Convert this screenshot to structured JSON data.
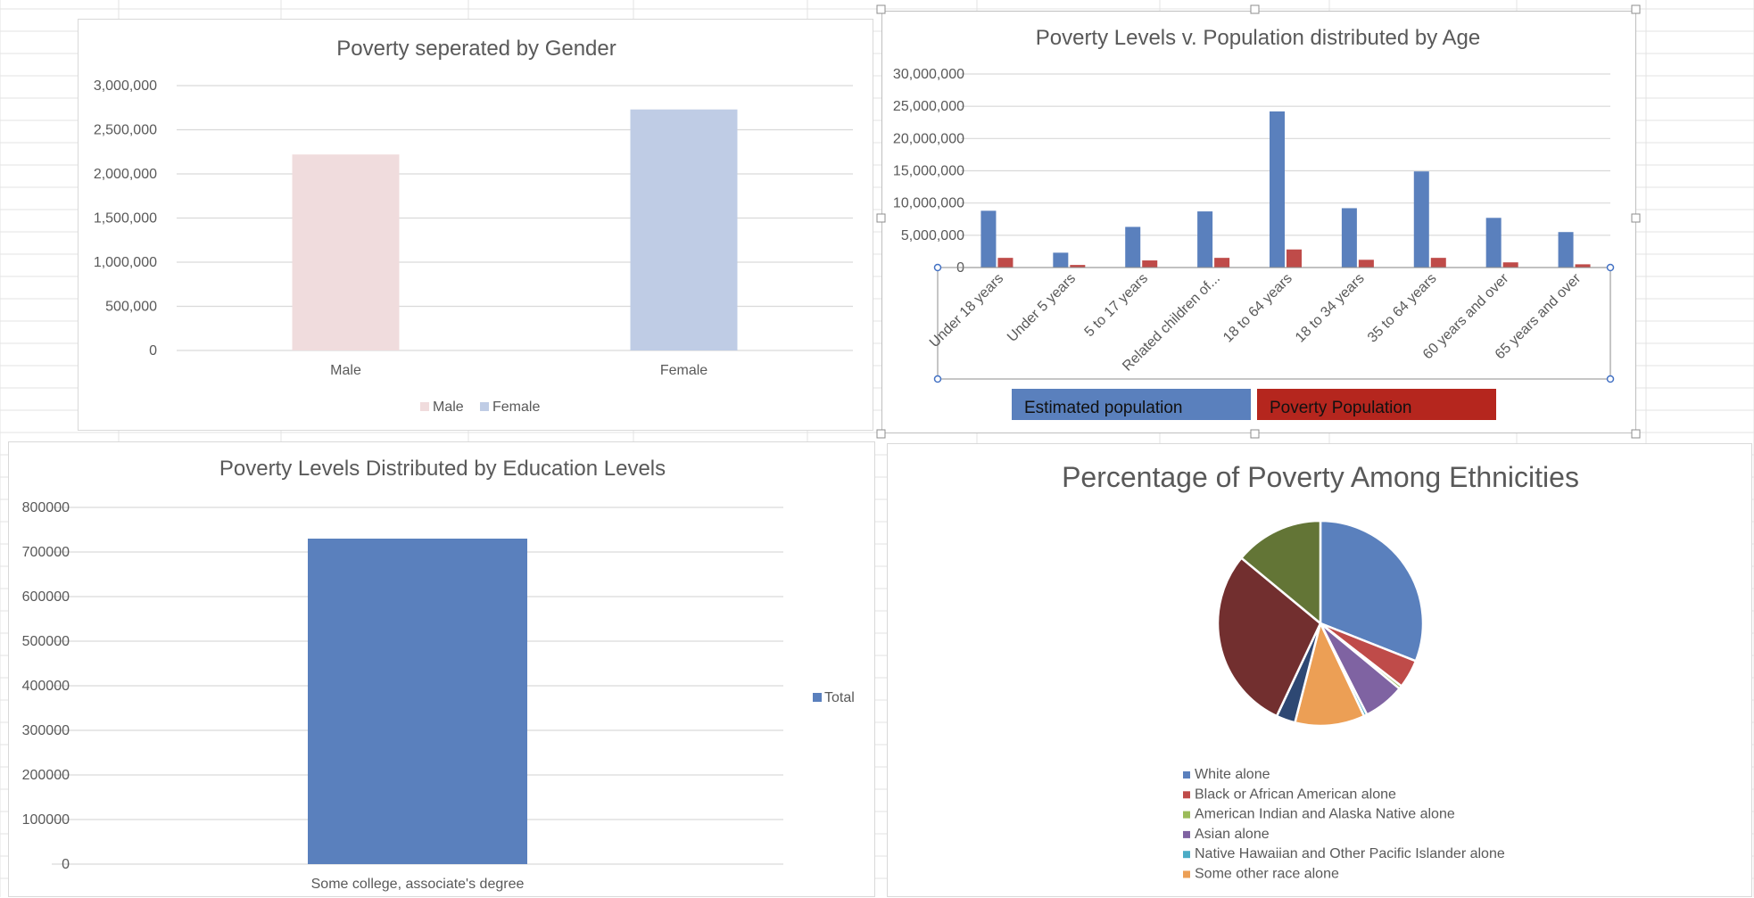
{
  "colors": {
    "male": "#f0dcdd",
    "female": "#bfcce5",
    "estimated": "#5a80bd",
    "poverty": "#bf4b49",
    "poverty_label_bg": "#b5261e",
    "education": "#5a80bd",
    "gridline": "#d9d9d9"
  },
  "chart_data": [
    {
      "id": "gender",
      "type": "bar",
      "title": "Poverty seperated by Gender",
      "categories": [
        "Male",
        "Female"
      ],
      "values": [
        2220000,
        2730000
      ],
      "ylim": [
        0,
        3000000
      ],
      "yticks": [
        "0",
        "500,000",
        "1,000,000",
        "1,500,000",
        "2,000,000",
        "2,500,000",
        "3,000,000"
      ],
      "legend": [
        "Male",
        "Female"
      ],
      "legend_position": "bottom",
      "grid": true
    },
    {
      "id": "age",
      "type": "bar",
      "title": "Poverty Levels v. Population distributed by Age",
      "categories": [
        "Under 18 years",
        "Under 5 years",
        "5 to 17 years",
        "Related children of...",
        "18 to 64 years",
        "18 to 34 years",
        "35 to 64 years",
        "60 years and over",
        "65 years and over"
      ],
      "series": [
        {
          "name": "Estimated population",
          "values": [
            8800000,
            2300000,
            6300000,
            8700000,
            24200000,
            9200000,
            14900000,
            7700000,
            5500000
          ]
        },
        {
          "name": "Poverty Population",
          "values": [
            1500000,
            400000,
            1100000,
            1500000,
            2800000,
            1200000,
            1500000,
            800000,
            500000
          ]
        }
      ],
      "ylim": [
        0,
        30000000
      ],
      "yticks": [
        "0",
        "5,000,000",
        "10,000,000",
        "15,000,000",
        "20,000,000",
        "25,000,000",
        "30,000,000"
      ],
      "legend_position": "bottom",
      "grid": true
    },
    {
      "id": "education",
      "type": "bar",
      "title": "Poverty Levels Distributed by Education Levels",
      "categories": [
        "Some college, associate's degree"
      ],
      "series": [
        {
          "name": "Total",
          "values": [
            730000
          ]
        }
      ],
      "ylim": [
        0,
        800000
      ],
      "yticks": [
        "0",
        "100000",
        "200000",
        "300000",
        "400000",
        "500000",
        "600000",
        "700000",
        "800000"
      ],
      "legend_position": "right",
      "grid": true
    },
    {
      "id": "ethnicity",
      "type": "pie",
      "title": "Percentage of Poverty Among Ethnicities",
      "legend_position": "bottom",
      "slices": [
        {
          "label": "White alone",
          "value": 31,
          "color": "#5a80bd"
        },
        {
          "label": "Black or African American alone",
          "value": 4.5,
          "color": "#bf4b49"
        },
        {
          "label": "American Indian and Alaska Native alone",
          "value": 0.5,
          "color": "#9bbb59"
        },
        {
          "label": "Asian alone",
          "value": 6.5,
          "color": "#7f63a2"
        },
        {
          "label": "Native Hawaiian and Other Pacific Islander alone",
          "value": 0.5,
          "color": "#4bacc6"
        },
        {
          "label": "Some other race alone",
          "value": 11,
          "color": "#ec9f55"
        },
        {
          "label": "",
          "value": 3,
          "color": "#2e4873"
        },
        {
          "label": "",
          "value": 29,
          "color": "#722f2f"
        },
        {
          "label": "",
          "value": 14,
          "color": "#637536"
        }
      ]
    }
  ]
}
